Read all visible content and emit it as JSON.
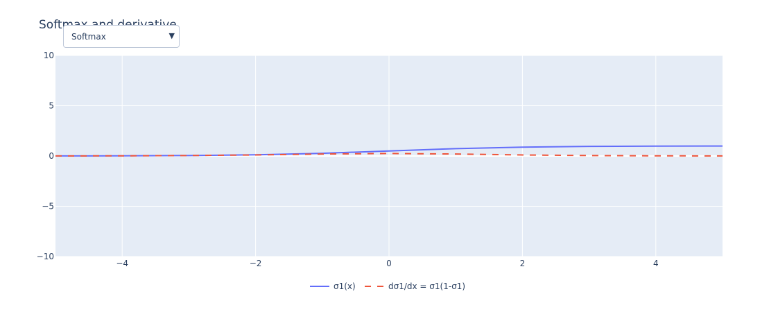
{
  "chart_data": {
    "type": "line",
    "title": "Softmax and derivative",
    "xlim": [
      -5,
      5
    ],
    "ylim": [
      -10,
      10
    ],
    "x_ticks": [
      -4,
      -2,
      0,
      2,
      4
    ],
    "y_ticks": [
      -10,
      -5,
      0,
      5,
      10
    ],
    "x_tick_labels": [
      "−4",
      "−2",
      "0",
      "2",
      "4"
    ],
    "y_tick_labels": [
      "−10",
      "−5",
      "0",
      "5",
      "10"
    ],
    "grid": true,
    "legend_position": "bottom-center",
    "series": [
      {
        "name": "σ1(x)",
        "color": "#636efa",
        "dash": "solid",
        "x": [
          -5,
          -4,
          -3,
          -2,
          -1,
          0,
          1,
          2,
          3,
          4,
          5
        ],
        "y": [
          0.007,
          0.018,
          0.047,
          0.119,
          0.269,
          0.5,
          0.731,
          0.881,
          0.953,
          0.982,
          0.993
        ]
      },
      {
        "name": "dσ1/dx = σ1(1-σ1)",
        "color": "#ef553b",
        "dash": "dash",
        "x": [
          -5,
          -4,
          -3,
          -2,
          -1,
          0,
          1,
          2,
          3,
          4,
          5
        ],
        "y": [
          0.007,
          0.018,
          0.045,
          0.105,
          0.197,
          0.25,
          0.197,
          0.105,
          0.045,
          0.018,
          0.007
        ]
      }
    ]
  },
  "controls": {
    "dropdown_value": "Softmax",
    "dropdown_arrow": "▼"
  },
  "colors": {
    "plot_bg": "#e5ecf6",
    "grid": "#ffffff",
    "text": "#2a3f5f"
  }
}
